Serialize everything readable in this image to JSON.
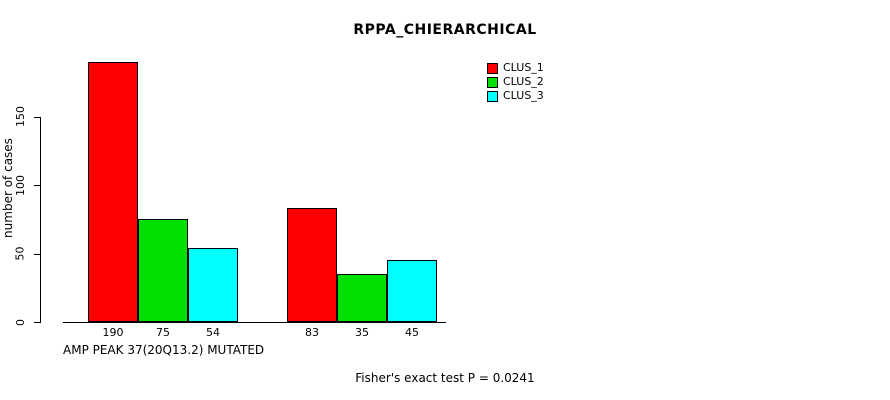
{
  "title": "RPPA_CHIERARCHICAL",
  "footer": "Fisher's exact test P = 0.0241",
  "y_axis": {
    "label": "number of cases",
    "ticks": [
      0,
      50,
      100,
      150
    ]
  },
  "x_axis": {
    "label": "AMP PEAK 37(20Q13.2) MUTATED"
  },
  "legend": {
    "position": "top-right",
    "entries": [
      {
        "label": "CLUS_1",
        "color": "#ff0000"
      },
      {
        "label": "CLUS_2",
        "color": "#00e000"
      },
      {
        "label": "CLUS_3",
        "color": "#00ffff"
      }
    ]
  },
  "chart_data": {
    "type": "bar",
    "title": "RPPA_CHIERARCHICAL",
    "xlabel": "AMP PEAK 37(20Q13.2) MUTATED",
    "ylabel": "number of cases",
    "ylim": [
      0,
      195
    ],
    "yticks": [
      0,
      50,
      100,
      150
    ],
    "grid": false,
    "legend_position": "top-right",
    "categories": [
      "group_1",
      "group_2"
    ],
    "series": [
      {
        "name": "CLUS_1",
        "color": "#ff0000",
        "values": [
          190,
          83
        ]
      },
      {
        "name": "CLUS_2",
        "color": "#00e000",
        "values": [
          75,
          35
        ]
      },
      {
        "name": "CLUS_3",
        "color": "#00ffff",
        "values": [
          54,
          45
        ]
      }
    ],
    "bar_value_labels": [
      [
        190,
        75,
        54
      ],
      [
        83,
        35,
        45
      ]
    ],
    "annotation": "Fisher's exact test P = 0.0241"
  }
}
